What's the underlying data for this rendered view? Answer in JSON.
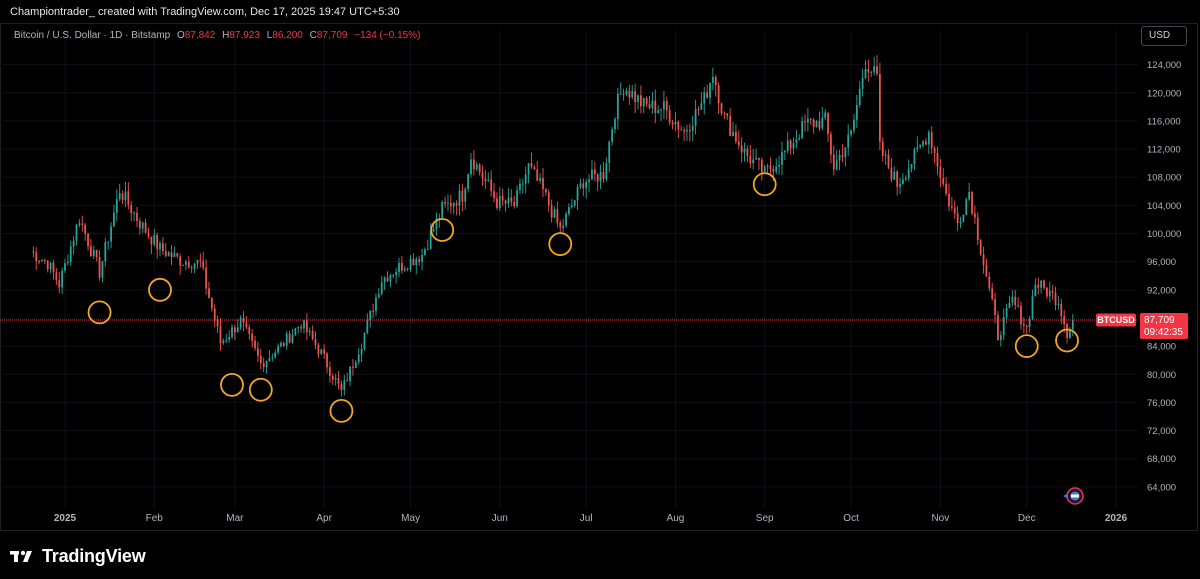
{
  "header": {
    "attribution": "Championtrader_ created with TradingView.com, Dec 17, 2025 19:47 UTC+5:30"
  },
  "legend": {
    "symbol": "Bitcoin / U.S. Dollar · 1D · Bitstamp",
    "open_label": "O",
    "open": "87,842",
    "high_label": "H",
    "high": "87,923",
    "low_label": "L",
    "low": "86,200",
    "close_label": "C",
    "close": "87,709",
    "change": "−134 (−0.15%)"
  },
  "currency_button": "USD",
  "price_tag": {
    "ticker": "BTCUSD",
    "price": "87,709",
    "countdown": "09:42:35"
  },
  "footer": {
    "brand": "TradingView"
  },
  "colors": {
    "up": "#26a69a",
    "down": "#ef5350",
    "marker": "#f5a623",
    "price_line": "#f23645"
  },
  "chart_data": {
    "type": "candlestick",
    "symbol": "BTCUSD",
    "ylim": [
      61000,
      127500
    ],
    "y_ticks": [
      64000,
      68000,
      72000,
      76000,
      80000,
      84000,
      88000,
      92000,
      96000,
      100000,
      104000,
      108000,
      112000,
      116000,
      120000,
      124000
    ],
    "y_tick_labels": [
      "64,000",
      "68,000",
      "72,000",
      "76,000",
      "80,000",
      "84,000",
      "88,000",
      "92,000",
      "96,000",
      "100,000",
      "104,000",
      "108,000",
      "112,000",
      "116,000",
      "120,000",
      "124,000"
    ],
    "x_ticks": [
      {
        "label": "2025",
        "date": "2025-01-01"
      },
      {
        "label": "Feb",
        "date": "2025-02-01"
      },
      {
        "label": "Mar",
        "date": "2025-03-01"
      },
      {
        "label": "Apr",
        "date": "2025-04-01"
      },
      {
        "label": "May",
        "date": "2025-05-01"
      },
      {
        "label": "Jun",
        "date": "2025-06-01"
      },
      {
        "label": "Jul",
        "date": "2025-07-01"
      },
      {
        "label": "Aug",
        "date": "2025-08-01"
      },
      {
        "label": "Sep",
        "date": "2025-09-01"
      },
      {
        "label": "Oct",
        "date": "2025-10-01"
      },
      {
        "label": "Nov",
        "date": "2025-11-01"
      },
      {
        "label": "Dec",
        "date": "2025-12-01"
      },
      {
        "label": "2026",
        "date": "2026-01-01"
      }
    ],
    "last_price": 87709,
    "series": [
      {
        "date": "2024-12-20",
        "close": 97500
      },
      {
        "date": "2024-12-26",
        "close": 95800
      },
      {
        "date": "2024-12-30",
        "close": 92800
      },
      {
        "date": "2025-01-06",
        "close": 102200
      },
      {
        "date": "2025-01-13",
        "close": 94500
      },
      {
        "date": "2025-01-20",
        "close": 106200
      },
      {
        "date": "2025-01-27",
        "close": 101500
      },
      {
        "date": "2025-02-03",
        "close": 97800
      },
      {
        "date": "2025-02-10",
        "close": 96200
      },
      {
        "date": "2025-02-17",
        "close": 95800
      },
      {
        "date": "2025-02-24",
        "close": 84500
      },
      {
        "date": "2025-03-03",
        "close": 87500
      },
      {
        "date": "2025-03-10",
        "close": 81500
      },
      {
        "date": "2025-03-17",
        "close": 84000
      },
      {
        "date": "2025-03-24",
        "close": 87300
      },
      {
        "date": "2025-03-31",
        "close": 83000
      },
      {
        "date": "2025-04-07",
        "close": 77500
      },
      {
        "date": "2025-04-14",
        "close": 84500
      },
      {
        "date": "2025-04-21",
        "close": 93500
      },
      {
        "date": "2025-04-28",
        "close": 95500
      },
      {
        "date": "2025-05-05",
        "close": 97000
      },
      {
        "date": "2025-05-12",
        "close": 103500
      },
      {
        "date": "2025-05-19",
        "close": 105500
      },
      {
        "date": "2025-05-22",
        "close": 111000
      },
      {
        "date": "2025-05-31",
        "close": 104500
      },
      {
        "date": "2025-06-06",
        "close": 104000
      },
      {
        "date": "2025-06-11",
        "close": 109500
      },
      {
        "date": "2025-06-16",
        "close": 106000
      },
      {
        "date": "2025-06-22",
        "close": 100500
      },
      {
        "date": "2025-06-30",
        "close": 107500
      },
      {
        "date": "2025-07-07",
        "close": 108500
      },
      {
        "date": "2025-07-11",
        "close": 117500
      },
      {
        "date": "2025-07-14",
        "close": 121000
      },
      {
        "date": "2025-07-21",
        "close": 118200
      },
      {
        "date": "2025-07-28",
        "close": 117800
      },
      {
        "date": "2025-08-04",
        "close": 114500
      },
      {
        "date": "2025-08-11",
        "close": 119000
      },
      {
        "date": "2025-08-14",
        "close": 123000
      },
      {
        "date": "2025-08-18",
        "close": 116500
      },
      {
        "date": "2025-08-25",
        "close": 111500
      },
      {
        "date": "2025-09-01",
        "close": 108500
      },
      {
        "date": "2025-09-08",
        "close": 111500
      },
      {
        "date": "2025-09-15",
        "close": 115500
      },
      {
        "date": "2025-09-22",
        "close": 116000
      },
      {
        "date": "2025-09-25",
        "close": 109500
      },
      {
        "date": "2025-10-01",
        "close": 114000
      },
      {
        "date": "2025-10-06",
        "close": 124500
      },
      {
        "date": "2025-10-10",
        "close": 122000
      },
      {
        "date": "2025-10-11",
        "close": 112000
      },
      {
        "date": "2025-10-17",
        "close": 107000
      },
      {
        "date": "2025-10-24",
        "close": 111500
      },
      {
        "date": "2025-10-28",
        "close": 114500
      },
      {
        "date": "2025-11-03",
        "close": 105500
      },
      {
        "date": "2025-11-07",
        "close": 101500
      },
      {
        "date": "2025-11-11",
        "close": 106000
      },
      {
        "date": "2025-11-17",
        "close": 94000
      },
      {
        "date": "2025-11-21",
        "close": 85500
      },
      {
        "date": "2025-11-26",
        "close": 90500
      },
      {
        "date": "2025-12-01",
        "close": 86500
      },
      {
        "date": "2025-12-04",
        "close": 93000
      },
      {
        "date": "2025-12-09",
        "close": 91500
      },
      {
        "date": "2025-12-12",
        "close": 90500
      },
      {
        "date": "2025-12-15",
        "close": 86000
      },
      {
        "date": "2025-12-17",
        "close": 87709
      }
    ],
    "markers": [
      {
        "date": "2025-01-13",
        "price": 88800
      },
      {
        "date": "2025-02-03",
        "price": 92000
      },
      {
        "date": "2025-02-28",
        "price": 78500
      },
      {
        "date": "2025-03-10",
        "price": 77800
      },
      {
        "date": "2025-04-07",
        "price": 74800
      },
      {
        "date": "2025-05-12",
        "price": 100500
      },
      {
        "date": "2025-06-22",
        "price": 98500
      },
      {
        "date": "2025-09-01",
        "price": 107000
      },
      {
        "date": "2025-12-01",
        "price": 84000
      },
      {
        "date": "2025-12-15",
        "price": 84800
      }
    ]
  }
}
